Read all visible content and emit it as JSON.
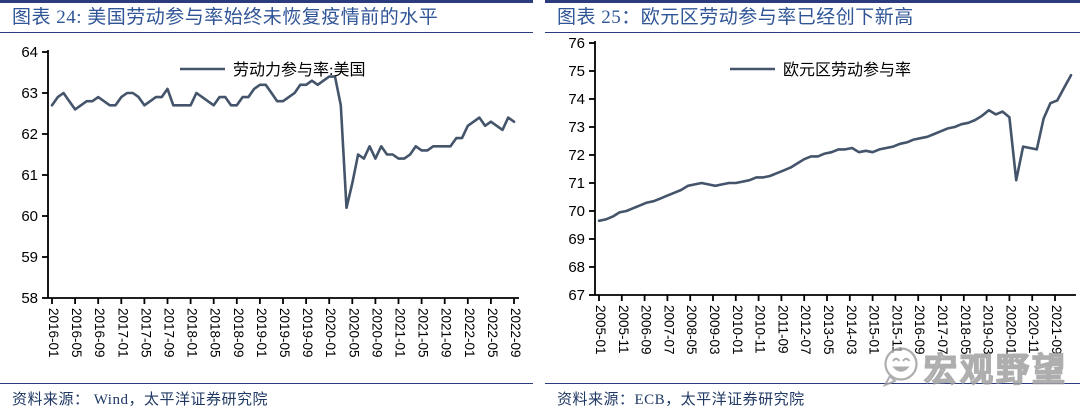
{
  "colors": {
    "line": "#44546A",
    "title_text": "#2F5597",
    "rule": "#2C3A7E",
    "source_text": "#1F3864",
    "axis": "#000000",
    "watermark": "#A0A0A0"
  },
  "watermark": {
    "icon": "smiley-face-logo",
    "text": "宏观野望"
  },
  "chart_data": [
    {
      "type": "line",
      "title": "图表 24: 美国劳动参与率始终未恢复疫情前的水平",
      "source": "资料来源：  Wind，太平洋证券研究院",
      "legend": "劳动力参与率:美国",
      "legend_position": "top-center",
      "grid": false,
      "ylim": [
        58,
        64
      ],
      "ytick_step": 1,
      "x_start": "2016-01",
      "point_spacing_months": 1,
      "x_tick_spacing_months": 4,
      "x_tick_labels": [
        "2016-01",
        "2016-05",
        "2016-09",
        "2017-01",
        "2017-05",
        "2017-09",
        "2018-01",
        "2018-05",
        "2018-09",
        "2019-01",
        "2019-05",
        "2019-09",
        "2020-01",
        "2020-05",
        "2020-09",
        "2021-01",
        "2021-05",
        "2021-09",
        "2022-01",
        "2022-05",
        "2022-09"
      ],
      "values": [
        62.7,
        62.9,
        63.0,
        62.8,
        62.6,
        62.7,
        62.8,
        62.8,
        62.9,
        62.8,
        62.7,
        62.7,
        62.9,
        63.0,
        63.0,
        62.9,
        62.7,
        62.8,
        62.9,
        62.9,
        63.1,
        62.7,
        62.7,
        62.7,
        62.7,
        63.0,
        62.9,
        62.8,
        62.7,
        62.9,
        62.9,
        62.7,
        62.7,
        62.9,
        62.9,
        63.1,
        63.2,
        63.2,
        63.0,
        62.8,
        62.8,
        62.9,
        63.0,
        63.2,
        63.2,
        63.3,
        63.2,
        63.3,
        63.4,
        63.4,
        62.7,
        60.2,
        60.8,
        61.5,
        61.4,
        61.7,
        61.4,
        61.7,
        61.5,
        61.5,
        61.4,
        61.4,
        61.5,
        61.7,
        61.6,
        61.6,
        61.7,
        61.7,
        61.7,
        61.7,
        61.9,
        61.9,
        62.2,
        62.3,
        62.4,
        62.2,
        62.3,
        62.2,
        62.1,
        62.4,
        62.3
      ]
    },
    {
      "type": "line",
      "title": "图表 25：欧元区劳动参与率已经创下新高",
      "source": "资料来源：ECB，太平洋证券研究院",
      "legend": "欧元区劳动参与率",
      "legend_position": "top-center",
      "grid": false,
      "ylim": [
        67,
        76
      ],
      "ytick_step": 1,
      "x_start": "2005-01",
      "point_spacing_months": 3,
      "x_tick_spacing_months": 10,
      "x_tick_labels": [
        "2005-01",
        "2005-11",
        "2006-09",
        "2007-07",
        "2008-05",
        "2009-03",
        "2010-01",
        "2010-11",
        "2011-09",
        "2012-07",
        "2013-05",
        "2014-03",
        "2015-01",
        "2015-11",
        "2016-09",
        "2017-07",
        "2018-05",
        "2019-03",
        "2020-01",
        "2020-11",
        "2021-09"
      ],
      "values": [
        69.65,
        69.7,
        69.8,
        69.95,
        70.0,
        70.1,
        70.2,
        70.3,
        70.35,
        70.45,
        70.55,
        70.65,
        70.75,
        70.9,
        70.95,
        71.0,
        70.95,
        70.9,
        70.95,
        71.0,
        71.0,
        71.05,
        71.1,
        71.2,
        71.2,
        71.25,
        71.35,
        71.45,
        71.55,
        71.7,
        71.85,
        71.95,
        71.95,
        72.05,
        72.1,
        72.2,
        72.2,
        72.25,
        72.1,
        72.15,
        72.1,
        72.2,
        72.25,
        72.3,
        72.4,
        72.45,
        72.55,
        72.6,
        72.65,
        72.75,
        72.85,
        72.95,
        73.0,
        73.1,
        73.15,
        73.25,
        73.4,
        73.6,
        73.45,
        73.55,
        73.35,
        71.1,
        72.3,
        72.25,
        72.2,
        73.3,
        73.85,
        73.95,
        74.4,
        74.85
      ]
    }
  ]
}
